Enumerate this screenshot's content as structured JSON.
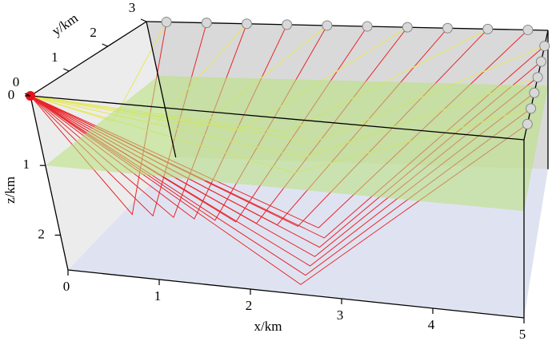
{
  "chart_data": {
    "type": "3d-rays",
    "xlabel": "x/km",
    "ylabel": "y/km",
    "zlabel": "z/km",
    "xlim": [
      0,
      5
    ],
    "xticks": [
      0,
      1,
      2,
      3,
      4,
      5
    ],
    "ylim": [
      0,
      3
    ],
    "yticks": [
      0,
      1,
      2,
      3
    ],
    "zlim": [
      0,
      2.5
    ],
    "zticks": [
      0,
      1,
      2
    ]
  }
}
